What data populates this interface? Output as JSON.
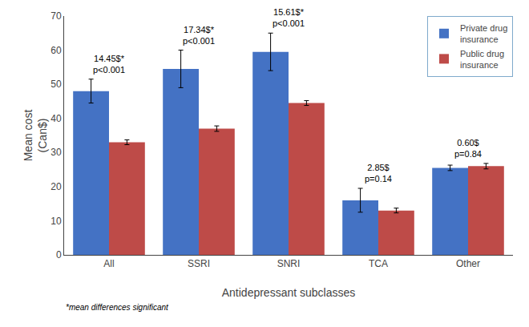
{
  "chart_data": {
    "type": "bar",
    "categories": [
      "All",
      "SSRI",
      "SNRI",
      "TCA",
      "Other"
    ],
    "series": [
      {
        "name": "Private drug\ninsurance",
        "color": "#4472C4",
        "values": [
          48,
          54.5,
          59.5,
          16,
          25.5
        ],
        "errors": [
          3.5,
          5.5,
          5.5,
          3.5,
          0.8
        ]
      },
      {
        "name": "Public drug\ninsurance",
        "color": "#BE4B48",
        "values": [
          33,
          37,
          44.5,
          13,
          26
        ],
        "errors": [
          0.7,
          0.8,
          0.7,
          0.7,
          0.8
        ]
      }
    ],
    "annotations": [
      {
        "x": "All",
        "text": "14.45$*\np<0.001"
      },
      {
        "x": "SSRI",
        "text": "17.34$*\np<0.001"
      },
      {
        "x": "SNRI",
        "text": "15.61$*\np<0.001"
      },
      {
        "x": "TCA",
        "text": "2.85$\np=0.14"
      },
      {
        "x": "Other",
        "text": "0.60$\np=0.84"
      }
    ],
    "ylabel": "Mean cost\n(Can$)",
    "xlabel": "Antidepressant subclasses",
    "footnote": "*mean differences significant",
    "ylim": [
      0,
      70
    ],
    "yticks": [
      0,
      10,
      20,
      30,
      40,
      50,
      60,
      70
    ],
    "grid": false,
    "legend": "upper right"
  }
}
